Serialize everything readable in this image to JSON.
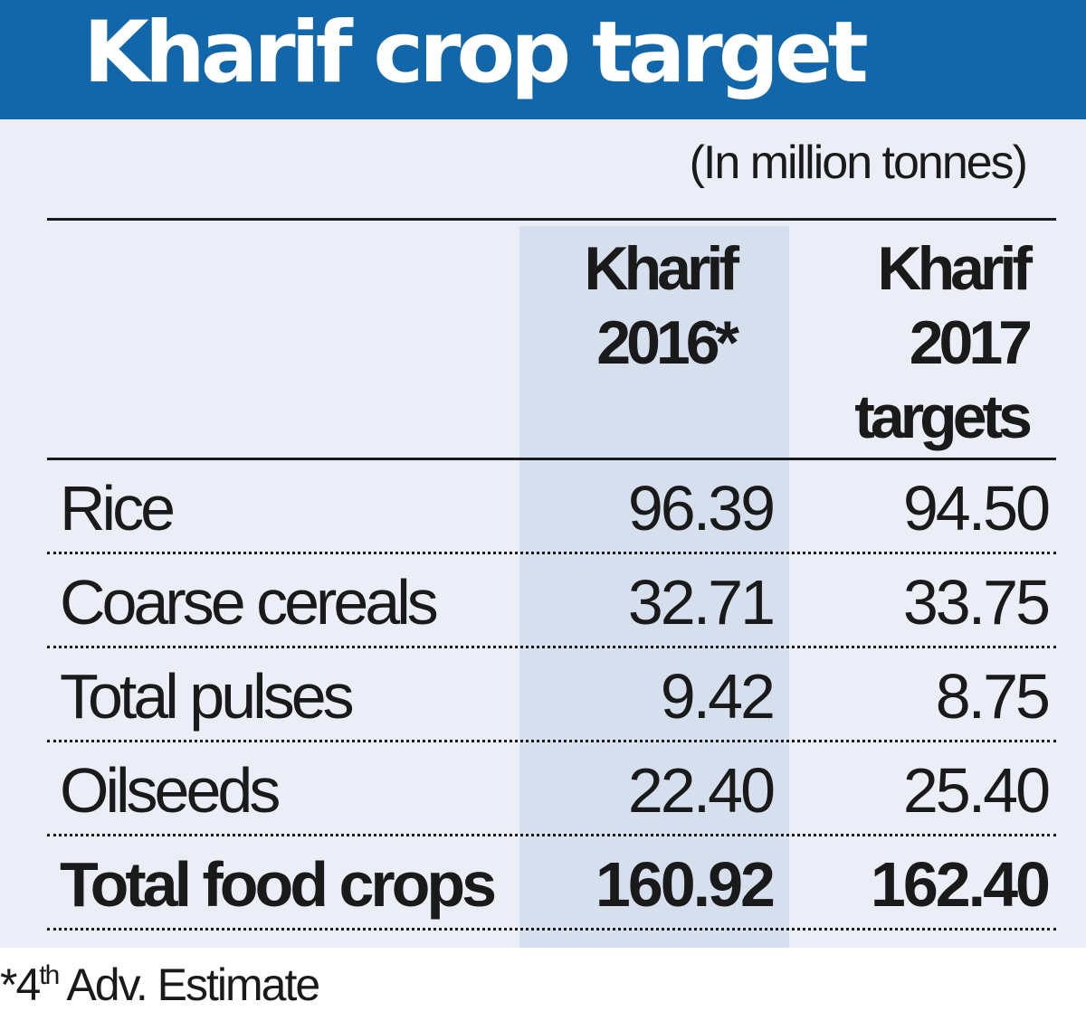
{
  "chart_data": {
    "type": "table",
    "title": "Kharif crop target",
    "unit_note": "(In million tonnes)",
    "columns": [
      {
        "lines": [
          "Kharif",
          "2016*"
        ]
      },
      {
        "lines": [
          "Kharif",
          "2017",
          "targets"
        ]
      }
    ],
    "rows": [
      {
        "label": "Rice",
        "values": [
          "96.39",
          "94.50"
        ],
        "bold": false
      },
      {
        "label": "Coarse cereals",
        "values": [
          "32.71",
          "33.75"
        ],
        "bold": false
      },
      {
        "label": "Total pulses",
        "values": [
          "9.42",
          "8.75"
        ],
        "bold": false
      },
      {
        "label": "Oilseeds",
        "values": [
          "22.40",
          "25.40"
        ],
        "bold": false
      },
      {
        "label": "Total food crops",
        "values": [
          "160.92",
          "162.40"
        ],
        "bold": true
      }
    ],
    "footnote": {
      "prefix": "*4",
      "sup": "th",
      "suffix": " Adv. Estimate"
    }
  },
  "colors": {
    "title_bar": "#1167a9",
    "panel": "#ebeef6",
    "highlight_column": "#d6dfee",
    "text": "#1a1a1a"
  }
}
